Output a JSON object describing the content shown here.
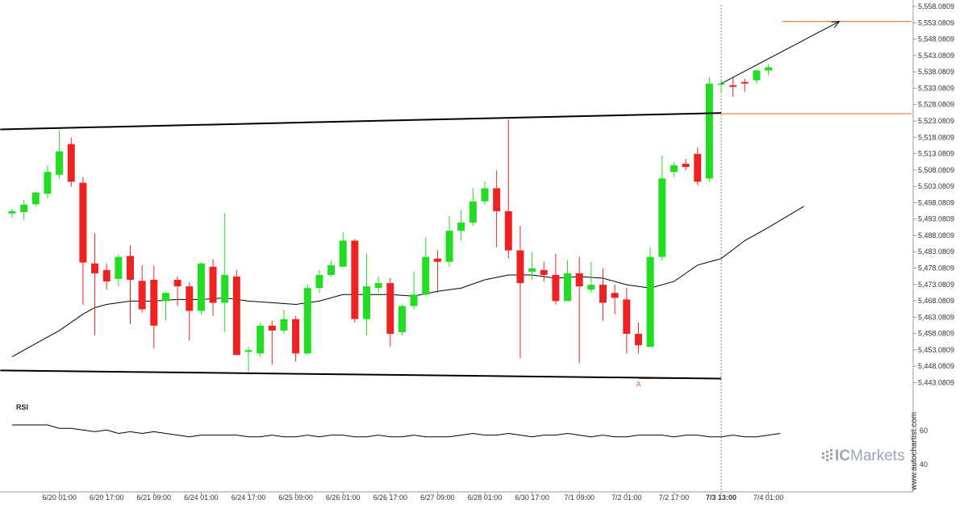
{
  "brand": {
    "watermark_prefix": "IC",
    "watermark_suffix": "Markets",
    "vertical_credit": "www.autochartist.com"
  },
  "colors": {
    "bullish": "#22dd22",
    "bearish": "#ee2222",
    "level": "#e8641b",
    "trendline": "#000000",
    "ma": "#000000",
    "dashed": "#888888"
  },
  "chart_data": {
    "type": "candlestick",
    "y_ticks": [
      "5,558.0809",
      "5,553.0809",
      "5,548.0809",
      "5,543.0809",
      "5,538.0809",
      "5,533.0809",
      "5,528.0809",
      "5,523.0809",
      "5,518.0809",
      "5,513.0809",
      "5,508.0809",
      "5,503.0809",
      "5,498.0809",
      "5,493.0809",
      "5,488.0809",
      "5,483.0809",
      "5,478.0809",
      "5,473.0809",
      "5,468.0809",
      "5,463.0809",
      "5,458.0809",
      "5,453.0809",
      "5,448.0809",
      "5,443.0809"
    ],
    "ylim": [
      5443.0809,
      5558.0809
    ],
    "x_ticks": [
      {
        "label": "6/20 01:00",
        "i": 4
      },
      {
        "label": "6/20 17:00",
        "i": 8
      },
      {
        "label": "6/21 09:00",
        "i": 12
      },
      {
        "label": "6/24 01:00",
        "i": 16
      },
      {
        "label": "6/24 17:00",
        "i": 20
      },
      {
        "label": "6/25 09:00",
        "i": 24
      },
      {
        "label": "6/26 01:00",
        "i": 28
      },
      {
        "label": "6/26 17:00",
        "i": 32
      },
      {
        "label": "6/27 09:00",
        "i": 36
      },
      {
        "label": "6/28 01:00",
        "i": 40
      },
      {
        "label": "6/30 17:00",
        "i": 44
      },
      {
        "label": "7/1 09:00",
        "i": 48
      },
      {
        "label": "7/2 01:00",
        "i": 52
      },
      {
        "label": "7/2 17:00",
        "i": 56
      },
      {
        "label": "7/3 13:00",
        "i": 60,
        "bold": true
      },
      {
        "label": "7/4 01:00",
        "i": 64
      }
    ],
    "candles": [
      [
        5494.8,
        5495.5,
        5493.5,
        5496.2
      ],
      [
        5495.2,
        5497.5,
        5492.8,
        5499.0
      ],
      [
        5497.6,
        5501.2,
        5496.8,
        5501.5
      ],
      [
        5500.8,
        5507.5,
        5499.5,
        5509.5
      ],
      [
        5506.6,
        5513.8,
        5505.5,
        5520.2
      ],
      [
        5516.0,
        5504.5,
        5503.0,
        5518.0
      ],
      [
        5504.2,
        5479.8,
        5466.8,
        5506.0
      ],
      [
        5479.5,
        5476.5,
        5457.5,
        5488.8
      ],
      [
        5477.5,
        5474.0,
        5471.5,
        5479.5
      ],
      [
        5474.8,
        5481.5,
        5472.5,
        5482.2
      ],
      [
        5481.8,
        5474.5,
        5461.0,
        5485.0
      ],
      [
        5474.2,
        5465.5,
        5464.5,
        5479.0
      ],
      [
        5474.5,
        5460.5,
        5453.5,
        5478.8
      ],
      [
        5468.0,
        5470.5,
        5462.0,
        5470.8
      ],
      [
        5474.5,
        5472.5,
        5466.5,
        5475.5
      ],
      [
        5472.5,
        5465.0,
        5456.0,
        5473.8
      ],
      [
        5465.0,
        5479.5,
        5464.0,
        5479.8
      ],
      [
        5478.5,
        5467.5,
        5463.5,
        5480.8
      ],
      [
        5467.5,
        5476.0,
        5458.5,
        5494.8
      ],
      [
        5475.5,
        5451.5,
        5452.0,
        5477.5
      ],
      [
        5452.5,
        5453.0,
        5446.5,
        5454.0
      ],
      [
        5452.0,
        5460.5,
        5451.0,
        5461.5
      ],
      [
        5460.5,
        5459.0,
        5448.5,
        5462.0
      ],
      [
        5459.0,
        5462.5,
        5458.0,
        5465.5
      ],
      [
        5462.5,
        5452.0,
        5449.5,
        5463.5
      ],
      [
        5452.0,
        5472.0,
        5451.5,
        5473.0
      ],
      [
        5472.0,
        5476.0,
        5470.5,
        5477.5
      ],
      [
        5476.0,
        5479.0,
        5475.5,
        5480.5
      ],
      [
        5478.5,
        5486.5,
        5479.5,
        5489.0
      ],
      [
        5486.5,
        5462.5,
        5461.5,
        5487.0
      ],
      [
        5462.5,
        5472.5,
        5457.5,
        5482.5
      ],
      [
        5472.0,
        5473.5,
        5470.5,
        5475.5
      ],
      [
        5473.5,
        5458.0,
        5454.0,
        5475.0
      ],
      [
        5458.5,
        5466.5,
        5457.5,
        5467.0
      ],
      [
        5466.5,
        5470.0,
        5465.5,
        5477.0
      ],
      [
        5470.0,
        5481.5,
        5469.5,
        5487.5
      ],
      [
        5481.0,
        5480.0,
        5470.5,
        5483.5
      ],
      [
        5480.0,
        5489.5,
        5478.5,
        5494.0
      ],
      [
        5489.5,
        5492.0,
        5486.5,
        5496.0
      ],
      [
        5492.0,
        5498.5,
        5491.0,
        5502.5
      ],
      [
        5498.5,
        5502.5,
        5497.5,
        5504.5
      ],
      [
        5502.5,
        5495.5,
        5484.5,
        5508.0
      ],
      [
        5495.5,
        5483.5,
        5481.0,
        5523.5
      ],
      [
        5483.5,
        5473.5,
        5450.5,
        5491.0
      ],
      [
        5477.0,
        5478.0,
        5474.5,
        5483.0
      ],
      [
        5477.5,
        5476.0,
        5474.0,
        5480.0
      ],
      [
        5476.0,
        5468.0,
        5467.0,
        5482.5
      ],
      [
        5468.0,
        5476.5,
        5468.5,
        5480.5
      ],
      [
        5476.5,
        5472.5,
        5449.0,
        5481.5
      ],
      [
        5471.5,
        5473.0,
        5470.5,
        5480.0
      ],
      [
        5473.0,
        5467.5,
        5462.0,
        5478.0
      ],
      [
        5470.5,
        5469.0,
        5464.0,
        5473.0
      ],
      [
        5468.5,
        5458.0,
        5452.0,
        5472.0
      ],
      [
        5458.0,
        5454.5,
        5452.0,
        5461.5
      ],
      [
        5454.0,
        5481.5,
        5454.5,
        5484.5
      ],
      [
        5481.5,
        5505.5,
        5480.5,
        5512.5
      ],
      [
        5507.5,
        5509.5,
        5506.0,
        5510.5
      ],
      [
        5510.0,
        5509.0,
        5508.0,
        5511.5
      ],
      [
        5513.0,
        5504.5,
        5503.5,
        5515.0
      ],
      [
        5505.5,
        5534.5,
        5504.5,
        5536.5
      ],
      [
        5534.5,
        5534.5,
        5531.5,
        5535.5
      ],
      [
        5534.0,
        5533.5,
        5530.5,
        5536.5
      ],
      [
        5535.0,
        5534.5,
        5532.0,
        5536.0
      ],
      [
        5535.5,
        5538.5,
        5534.5,
        5539.0
      ],
      [
        5538.5,
        5539.5,
        5537.0,
        5540.5
      ]
    ],
    "moving_average": [
      [
        0,
        5451
      ],
      [
        2,
        5455
      ],
      [
        4,
        5459
      ],
      [
        6,
        5464
      ],
      [
        7,
        5466
      ],
      [
        8,
        5467
      ],
      [
        10,
        5468
      ],
      [
        12,
        5468
      ],
      [
        14,
        5468.5
      ],
      [
        16,
        5468.5
      ],
      [
        18,
        5469
      ],
      [
        20,
        5468
      ],
      [
        22,
        5467.5
      ],
      [
        24,
        5467
      ],
      [
        26,
        5468
      ],
      [
        28,
        5470
      ],
      [
        30,
        5470
      ],
      [
        32,
        5470
      ],
      [
        34,
        5469.5
      ],
      [
        36,
        5471
      ],
      [
        38,
        5472
      ],
      [
        40,
        5474.5
      ],
      [
        42,
        5476
      ],
      [
        44,
        5476
      ],
      [
        46,
        5475
      ],
      [
        48,
        5475.5
      ],
      [
        50,
        5475
      ],
      [
        52,
        5473
      ],
      [
        54,
        5472
      ],
      [
        56,
        5474
      ],
      [
        58,
        5479
      ],
      [
        60,
        5481
      ],
      [
        62,
        5486.5
      ],
      [
        64,
        5490.5
      ],
      [
        67,
        5497
      ]
    ],
    "upper_trendline": [
      [
        -1,
        5520.5
      ],
      [
        60,
        5525.5
      ]
    ],
    "lower_trendline": [
      [
        -1,
        5446.8
      ],
      [
        60,
        5444.3
      ]
    ],
    "breakout_level": 5525.3,
    "support_level": 5444.3,
    "target_level": 5553.5,
    "projection_arrow": [
      [
        60,
        5534.5
      ],
      [
        70,
        5553.5
      ]
    ],
    "vertical_marker_index": 60,
    "point_label": {
      "text": "A",
      "i": 53
    },
    "rsi": {
      "label": "RSI",
      "ticks": [
        "60",
        "40"
      ],
      "ylim": [
        40,
        60
      ],
      "values": [
        60,
        60,
        60,
        60,
        58,
        58,
        57,
        56,
        57,
        55,
        56,
        55,
        56,
        55,
        54,
        53,
        54,
        54,
        54,
        54,
        53,
        53,
        54,
        53,
        53,
        54,
        53,
        54,
        54,
        53,
        53,
        54,
        53,
        53,
        54,
        53,
        53,
        53,
        54,
        55,
        54,
        54,
        55,
        54,
        53,
        54,
        54,
        55,
        54,
        53,
        54,
        53,
        53,
        54,
        54,
        54,
        53,
        54,
        54,
        53,
        53,
        54,
        53,
        53,
        54,
        55
      ]
    }
  }
}
